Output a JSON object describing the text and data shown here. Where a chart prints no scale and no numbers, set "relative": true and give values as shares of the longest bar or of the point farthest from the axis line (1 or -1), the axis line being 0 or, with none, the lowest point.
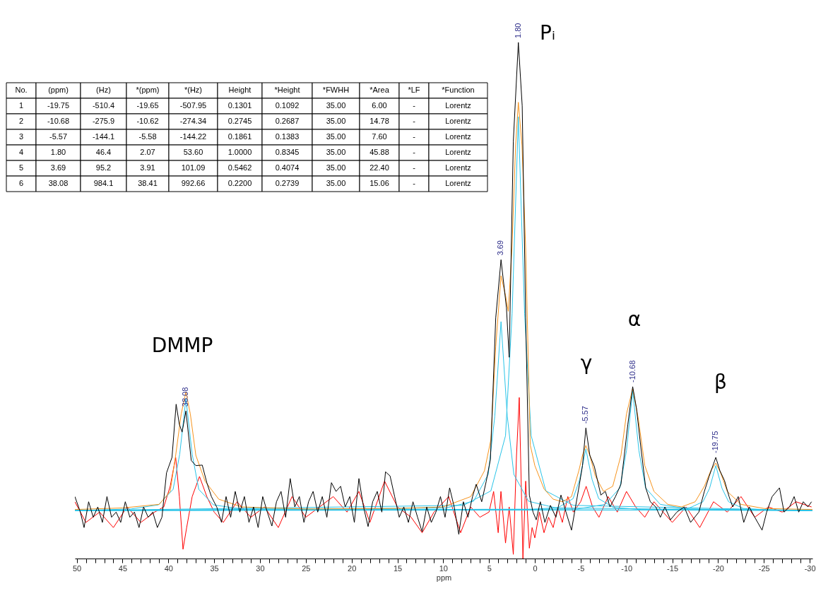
{
  "chart_data": {
    "type": "line",
    "xlabel": "ppm",
    "relative": true,
    "xlim": [
      50.2,
      -30.3
    ],
    "xticks": [
      50,
      {
        "value": 49,
        "label": null
      },
      {
        "value": 48,
        "label": null
      },
      {
        "value": 47,
        "label": null
      },
      {
        "value": 46,
        "label": null
      },
      45,
      {
        "value": 44,
        "label": null
      },
      {
        "value": 43,
        "label": null
      },
      {
        "value": 42,
        "label": null
      },
      {
        "value": 41,
        "label": null
      },
      40,
      {
        "value": 39,
        "label": null
      },
      {
        "value": 38,
        "label": null
      },
      {
        "value": 37,
        "label": null
      },
      {
        "value": 36,
        "label": null
      },
      35,
      {
        "value": 34,
        "label": null
      },
      {
        "value": 33,
        "label": null
      },
      {
        "value": 32,
        "label": null
      },
      {
        "value": 31,
        "label": null
      },
      30,
      {
        "value": 29,
        "label": null
      },
      {
        "value": 28,
        "label": null
      },
      {
        "value": 27,
        "label": null
      },
      {
        "value": 26,
        "label": null
      },
      25,
      {
        "value": 24,
        "label": null
      },
      {
        "value": 23,
        "label": null
      },
      {
        "value": 22,
        "label": null
      },
      {
        "value": 21,
        "label": null
      },
      20,
      {
        "value": 19,
        "label": null
      },
      {
        "value": 18,
        "label": null
      },
      {
        "value": 17,
        "label": null
      },
      {
        "value": 16,
        "label": null
      },
      15,
      {
        "value": 14,
        "label": null
      },
      {
        "value": 13,
        "label": null
      },
      {
        "value": 12,
        "label": null
      },
      {
        "value": 11,
        "label": null
      },
      10,
      {
        "value": 9,
        "label": null
      },
      {
        "value": 8,
        "label": null
      },
      {
        "value": 7,
        "label": null
      },
      {
        "value": 6,
        "label": null
      },
      5,
      {
        "value": 4,
        "label": null
      },
      {
        "value": 3,
        "label": null
      },
      {
        "value": 2,
        "label": null
      },
      {
        "value": 1,
        "label": null
      },
      0,
      {
        "value": -1,
        "label": null
      },
      {
        "value": -2,
        "label": null
      },
      {
        "value": -3,
        "label": null
      },
      {
        "value": -4,
        "label": null
      },
      -5,
      {
        "value": -6,
        "label": null
      },
      {
        "value": -7,
        "label": null
      },
      {
        "value": -8,
        "label": null
      },
      {
        "value": -9,
        "label": null
      },
      -10,
      {
        "value": -11,
        "label": null
      },
      {
        "value": -12,
        "label": null
      },
      {
        "value": -13,
        "label": null
      },
      {
        "value": -14,
        "label": null
      },
      -15,
      {
        "value": -16,
        "label": null
      },
      {
        "value": -17,
        "label": null
      },
      {
        "value": -18,
        "label": null
      },
      {
        "value": -19,
        "label": null
      },
      -20,
      {
        "value": -21,
        "label": null
      },
      {
        "value": -22,
        "label": null
      },
      {
        "value": -23,
        "label": null
      },
      {
        "value": -24,
        "label": null
      },
      -25,
      {
        "value": -26,
        "label": null
      },
      {
        "value": -27,
        "label": null
      },
      {
        "value": -28,
        "label": null
      },
      {
        "value": -29,
        "label": null
      },
      -30
    ],
    "series": [
      {
        "color": "#ff0000",
        "x": [
          50.2,
          49,
          47.5,
          46,
          44.5,
          43,
          41.5,
          40.5,
          39.8,
          39.2,
          38.8,
          38.4,
          38.0,
          37.4,
          36.6,
          35.8,
          35,
          34,
          32.5,
          31,
          29.5,
          28,
          26.5,
          25,
          23.5,
          22,
          20.5,
          19.2,
          18,
          16.4,
          15,
          13.5,
          12.3,
          11,
          9.4,
          8.1,
          7,
          6,
          5,
          4.5,
          4,
          3.7,
          3.2,
          2.8,
          2.35,
          2.0,
          1.7,
          1.3,
          1.0,
          0.6,
          0.3,
          0,
          -0.5,
          -1,
          -1.5,
          -2,
          -2.5,
          -3,
          -3.6,
          -4.2,
          -5,
          -5.6,
          -6.3,
          -7,
          -8,
          -9,
          -10,
          -11,
          -12,
          -13,
          -14,
          -15,
          -16.5,
          -18,
          -19.5,
          -21,
          -22.5,
          -24,
          -25.5,
          -27,
          -28.5,
          -30.2
        ],
        "values": [
          0.11,
          0.07,
          0.09,
          0.06,
          0.1,
          0.07,
          0.09,
          0.1,
          0.14,
          0.196,
          0.12,
          0.018,
          0.06,
          0.12,
          0.159,
          0.12,
          0.09,
          0.07,
          0.11,
          0.08,
          0.1,
          0.06,
          0.12,
          0.08,
          0.1,
          0.12,
          0.09,
          0.13,
          0.07,
          0.15,
          0.1,
          0.08,
          0.05,
          0.09,
          0.12,
          0.05,
          0.1,
          0.08,
          0.09,
          0.13,
          0.05,
          0.13,
          0.03,
          0.1,
          0.008,
          0.2,
          0.312,
          0.0,
          0.15,
          0.02,
          0.06,
          0.04,
          0.09,
          0.05,
          0.08,
          0.06,
          0.1,
          0.07,
          0.12,
          0.09,
          0.11,
          0.14,
          0.1,
          0.08,
          0.12,
          0.09,
          0.13,
          0.1,
          0.08,
          0.11,
          0.09,
          0.07,
          0.1,
          0.06,
          0.11,
          0.09,
          0.12,
          0.08,
          0.1,
          0.09,
          0.11,
          0.1
        ]
      },
      {
        "color": "#29c4e8",
        "x": [
          50.2,
          -13.75,
          -16.75,
          -18.35,
          -19.07,
          -19.75,
          -20.43,
          -21.15,
          -22.75,
          -25.75,
          -30.3
        ],
        "values": [
          0.093,
          0.094,
          0.097,
          0.11,
          0.136,
          0.18,
          0.136,
          0.11,
          0.097,
          0.094,
          0.093
        ]
      },
      {
        "color": "#29c4e8",
        "x": [
          50.2,
          -4.68,
          -7.68,
          -9.28,
          -10,
          -10.68,
          -11.36,
          -12.08,
          -13.68,
          -16.68,
          -30.3
        ],
        "values": [
          0.093,
          0.096,
          0.105,
          0.137,
          0.209,
          0.325,
          0.209,
          0.137,
          0.105,
          0.096,
          0.093
        ]
      },
      {
        "color": "#29c4e8",
        "x": [
          50.2,
          0.43,
          -2.57,
          -4.17,
          -4.89,
          -5.57,
          -6.25,
          -6.97,
          -8.57,
          -11.57,
          -30.3
        ],
        "values": [
          0.093,
          0.095,
          0.099,
          0.116,
          0.153,
          0.212,
          0.153,
          0.116,
          0.099,
          0.095,
          0.093
        ]
      },
      {
        "color": "#29c4e8",
        "x": [
          50.2,
          7.8,
          4.8,
          3.2,
          2.48,
          1.8,
          1.12,
          0.4,
          -1.2,
          -4.2,
          -30.3
        ],
        "values": [
          0.093,
          0.103,
          0.131,
          0.238,
          0.475,
          0.856,
          0.475,
          0.238,
          0.131,
          0.103,
          0.093
        ]
      },
      {
        "color": "#29c4e8",
        "x": [
          50.2,
          9.69,
          6.69,
          5.09,
          4.37,
          3.69,
          3.01,
          2.29,
          0.69,
          -2.31,
          -30.3
        ],
        "values": [
          0.093,
          0.098,
          0.111,
          0.163,
          0.276,
          0.459,
          0.276,
          0.163,
          0.111,
          0.098,
          0.093
        ]
      },
      {
        "color": "#29c4e8",
        "x": [
          50.2,
          44.08,
          41.08,
          39.48,
          38.76,
          38.08,
          37.4,
          36.68,
          35.08,
          32.08,
          -30.3
        ],
        "values": [
          0.093,
          0.096,
          0.104,
          0.134,
          0.202,
          0.31,
          0.202,
          0.134,
          0.104,
          0.096,
          0.093
        ]
      },
      {
        "color": "#f7941d",
        "x": [
          50.2,
          45,
          41,
          39.8,
          39.2,
          38.6,
          38.08,
          37.6,
          37,
          36,
          34.5,
          32,
          25,
          15,
          10,
          7,
          5.5,
          4.8,
          4.27,
          3.69,
          3.2,
          2.9,
          2.5,
          2.1,
          1.8,
          1.4,
          1.0,
          0.5,
          0,
          -1,
          -2,
          -3,
          -4,
          -4.8,
          -5.2,
          -5.57,
          -6,
          -6.6,
          -7.5,
          -8.5,
          -9.4,
          -10,
          -10.68,
          -11.3,
          -12,
          -13,
          -14.5,
          -16,
          -17.5,
          -18.5,
          -19.2,
          -19.75,
          -20.3,
          -21,
          -22.5,
          -25,
          -30.3
        ],
        "values": [
          0.095,
          0.098,
          0.105,
          0.13,
          0.2,
          0.28,
          0.323,
          0.28,
          0.2,
          0.15,
          0.115,
          0.1,
          0.096,
          0.097,
          0.1,
          0.12,
          0.17,
          0.23,
          0.41,
          0.548,
          0.51,
          0.479,
          0.6,
          0.8,
          0.884,
          0.8,
          0.6,
          0.22,
          0.18,
          0.135,
          0.115,
          0.11,
          0.12,
          0.17,
          0.2,
          0.219,
          0.2,
          0.16,
          0.13,
          0.14,
          0.2,
          0.28,
          0.329,
          0.27,
          0.18,
          0.13,
          0.105,
          0.1,
          0.11,
          0.14,
          0.17,
          0.185,
          0.165,
          0.13,
          0.105,
          0.097,
          0.095
        ]
      },
      {
        "color": "#000000",
        "x": [
          50.2,
          49.6,
          49.2,
          48.7,
          48.2,
          47.7,
          47.2,
          46.7,
          46.2,
          45.7,
          45.2,
          44.7,
          44.2,
          43.7,
          43.2,
          42.7,
          42.2,
          41.7,
          41.2,
          40.7,
          40.2,
          39.6,
          39.15,
          38.8,
          38.5,
          38.08,
          37.5,
          37.0,
          36.3,
          35.8,
          35.3,
          34.7,
          34.2,
          33.7,
          33.2,
          32.7,
          32.2,
          31.7,
          31.2,
          30.7,
          30.2,
          29.7,
          29.2,
          28.7,
          28.2,
          27.7,
          27.2,
          26.7,
          26.2,
          25.7,
          25.2,
          24.7,
          24.2,
          23.7,
          23.2,
          22.7,
          22.2,
          21.7,
          21.2,
          20.7,
          20.2,
          19.7,
          19.2,
          18.7,
          18.2,
          17.7,
          17.2,
          16.7,
          16.3,
          15.8,
          15.3,
          14.8,
          14.3,
          13.8,
          13.3,
          12.8,
          12.3,
          11.8,
          11.3,
          10.8,
          10.3,
          9.8,
          9.3,
          8.8,
          8.3,
          7.8,
          7.3,
          6.8,
          6.4,
          5.8,
          5.3,
          4.85,
          4.27,
          3.69,
          3.1,
          2.8,
          2.35,
          1.8,
          1.38,
          1.0,
          0.6,
          0.2,
          -0.15,
          -0.6,
          -1.1,
          -1.7,
          -2.3,
          -2.85,
          -3.4,
          -4.0,
          -4.8,
          -5.2,
          -5.57,
          -6.0,
          -6.5,
          -7.2,
          -7.7,
          -8.2,
          -8.8,
          -9.4,
          -10.15,
          -10.68,
          -11.1,
          -11.5,
          -12.1,
          -12.6,
          -13.2,
          -13.7,
          -14.2,
          -14.8,
          -15.5,
          -16.3,
          -17.0,
          -17.9,
          -18.5,
          -19.0,
          -19.75,
          -20.2,
          -20.7,
          -21.2,
          -21.6,
          -22.2,
          -22.8,
          -23.4,
          -24.0,
          -24.8,
          -25.3,
          -25.9,
          -26.7,
          -27.2,
          -27.8,
          -28.3,
          -28.8,
          -29.3,
          -29.8,
          -30.2
        ],
        "values": [
          0.12,
          0.09,
          0.06,
          0.11,
          0.08,
          0.1,
          0.07,
          0.12,
          0.08,
          0.09,
          0.07,
          0.11,
          0.08,
          0.09,
          0.06,
          0.1,
          0.08,
          0.09,
          0.06,
          0.08,
          0.166,
          0.196,
          0.299,
          0.26,
          0.245,
          0.286,
          0.19,
          0.18,
          0.181,
          0.147,
          0.12,
          0.099,
          0.07,
          0.12,
          0.08,
          0.13,
          0.09,
          0.12,
          0.07,
          0.1,
          0.06,
          0.12,
          0.09,
          0.063,
          0.11,
          0.13,
          0.08,
          0.155,
          0.1,
          0.12,
          0.07,
          0.11,
          0.13,
          0.09,
          0.12,
          0.08,
          0.147,
          0.13,
          0.14,
          0.1,
          0.12,
          0.07,
          0.155,
          0.1,
          0.062,
          0.11,
          0.13,
          0.09,
          0.168,
          0.16,
          0.12,
          0.08,
          0.1,
          0.07,
          0.11,
          0.08,
          0.052,
          0.1,
          0.07,
          0.09,
          0.12,
          0.08,
          0.137,
          0.1,
          0.047,
          0.11,
          0.08,
          0.12,
          0.144,
          0.11,
          0.15,
          0.192,
          0.466,
          0.579,
          0.486,
          0.39,
          0.808,
          1.0,
          0.877,
          0.466,
          0.123,
          0.09,
          0.075,
          0.11,
          0.07,
          0.103,
          0.08,
          0.123,
          0.09,
          0.055,
          0.137,
          0.18,
          0.253,
          0.2,
          0.178,
          0.123,
          0.13,
          0.1,
          0.12,
          0.144,
          0.26,
          0.333,
          0.29,
          0.226,
          0.137,
          0.11,
          0.1,
          0.08,
          0.1,
          0.075,
          0.09,
          0.1,
          0.07,
          0.09,
          0.13,
          0.158,
          0.196,
          0.17,
          0.151,
          0.12,
          0.1,
          0.12,
          0.07,
          0.1,
          0.08,
          0.055,
          0.09,
          0.12,
          0.137,
          0.09,
          0.1,
          0.12,
          0.09,
          0.11,
          0.1,
          0.11
        ]
      }
    ],
    "annotations": [
      "DMMP",
      "Pᵢ",
      "γ",
      "α",
      "β",
      "No.",
      "(ppm)",
      "(Hz)",
      "*(ppm)",
      "*(Hz)",
      "Height",
      "*Height",
      "*FWHH",
      "*Area",
      "*LF",
      "*Function",
      "1",
      "-19.75",
      "-510.4",
      "-19.65",
      "-507.95",
      "0.1301",
      "0.1092",
      "35.00",
      "6.00",
      "-",
      "Lorentz",
      "2",
      "-10.68",
      "-275.9",
      "-10.62",
      "-274.34",
      "0.2745",
      "0.2687",
      "35.00",
      "14.78",
      "-",
      "Lorentz",
      "3",
      "-5.57",
      "-144.1",
      "-5.58",
      "-144.22",
      "0.1861",
      "0.1383",
      "35.00",
      "7.60",
      "-",
      "Lorentz",
      "4",
      "1.80",
      "46.4",
      "2.07",
      "53.60",
      "1.0000",
      "0.8345",
      "35.00",
      "45.88",
      "-",
      "Lorentz",
      "5",
      "3.69",
      "95.2",
      "3.91",
      "101.09",
      "0.5462",
      "0.4074",
      "35.00",
      "22.40",
      "-",
      "Lorentz",
      "6",
      "38.08",
      "984.1",
      "38.41",
      "992.66",
      "0.2200",
      "0.2739",
      "35.00",
      "15.06",
      "-",
      "Lorentz",
      {
        "text": "38.08",
        "x": 38.08,
        "y": 0.286
      },
      {
        "text": "3.69",
        "x": 3.69,
        "y": 0.579
      },
      {
        "text": "1.80",
        "x": 1.8,
        "y": 1.0
      },
      {
        "text": "-5.57",
        "x": -5.57,
        "y": 0.253
      },
      {
        "text": "-10.68",
        "x": -10.68,
        "y": 0.333
      },
      {
        "text": "-19.75",
        "x": -19.75,
        "y": 0.196
      }
    ]
  }
}
